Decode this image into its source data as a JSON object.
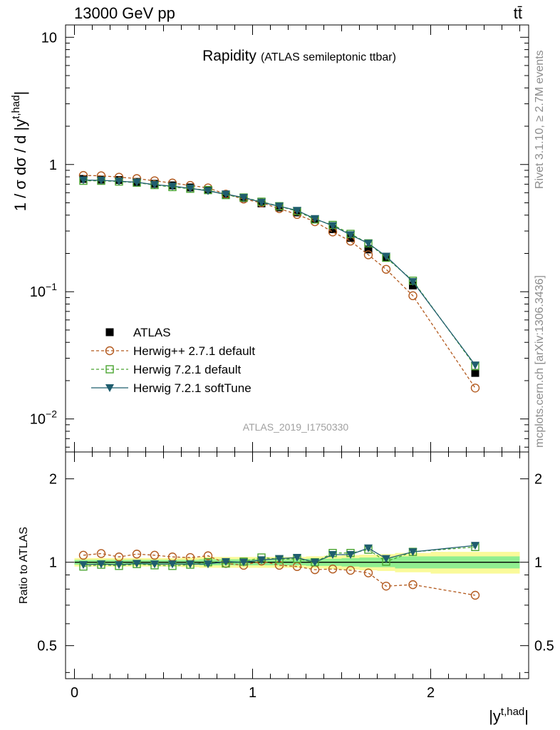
{
  "header": {
    "energy_label": "13000 GeV pp",
    "process_label": "tt̄"
  },
  "side_labels": {
    "rivet": "Rivet 3.1.10, ≥ 2.7M events",
    "source": "mcplots.cern.ch [arXiv:1306.3436]"
  },
  "chart_data": [
    {
      "type": "line",
      "title": "Rapidity",
      "subtitle": "(ATLAS semileptonic ttbar)",
      "analysis_id": "ATLAS_2019_I1750330",
      "ylabel": "1 / σ dσ / d |y^{t,had}|",
      "ylabel_parts": {
        "main": "1 / σ dσ / d |y",
        "sup": "t,had",
        "close": "|"
      },
      "yscale": "log",
      "ylim": [
        0.0055,
        12.5
      ],
      "xlim": [
        -0.05,
        2.55
      ],
      "y_ticks": [
        {
          "value": 10,
          "base": "10",
          "exp": ""
        },
        {
          "value": 1,
          "base": "1",
          "exp": ""
        },
        {
          "value": 0.1,
          "base": "10",
          "exp": "−1"
        },
        {
          "value": 0.01,
          "base": "10",
          "exp": "−2"
        }
      ],
      "x": [
        0.05,
        0.15,
        0.25,
        0.35,
        0.45,
        0.55,
        0.65,
        0.75,
        0.85,
        0.95,
        1.05,
        1.15,
        1.25,
        1.35,
        1.45,
        1.55,
        1.65,
        1.75,
        1.9,
        2.25
      ],
      "series": [
        {
          "name": "ATLAS",
          "color": "#000000",
          "marker": "square-filled",
          "line": "none",
          "values": [
            0.77,
            0.76,
            0.755,
            0.73,
            0.705,
            0.685,
            0.66,
            0.63,
            0.58,
            0.545,
            0.495,
            0.46,
            0.42,
            0.37,
            0.31,
            0.265,
            0.215,
            0.185,
            0.112,
            0.023
          ]
        },
        {
          "name": "Herwig++ 2.7.1 default",
          "color": "#b35a1f",
          "marker": "circle-open",
          "line": "dashed",
          "values": [
            0.82,
            0.815,
            0.795,
            0.775,
            0.745,
            0.715,
            0.685,
            0.655,
            0.585,
            0.535,
            0.5,
            0.45,
            0.405,
            0.355,
            0.295,
            0.25,
            0.195,
            0.15,
            0.093,
            0.0175
          ]
        },
        {
          "name": "Herwig 7.2.1 default",
          "color": "#4aa531",
          "marker": "square-open",
          "line": "dashed",
          "values": [
            0.745,
            0.745,
            0.735,
            0.72,
            0.69,
            0.665,
            0.645,
            0.63,
            0.575,
            0.55,
            0.51,
            0.47,
            0.43,
            0.37,
            0.335,
            0.285,
            0.24,
            0.185,
            0.122,
            0.026
          ]
        },
        {
          "name": "Herwig 7.2.1 softTune",
          "color": "#1f5d6e",
          "marker": "triangle-down-filled",
          "line": "solid",
          "values": [
            0.755,
            0.75,
            0.74,
            0.725,
            0.695,
            0.675,
            0.65,
            0.62,
            0.585,
            0.55,
            0.505,
            0.47,
            0.435,
            0.375,
            0.33,
            0.28,
            0.24,
            0.19,
            0.12,
            0.0265
          ]
        }
      ],
      "legend_position": "middle-left"
    },
    {
      "type": "line",
      "ylabel": "Ratio to ATLAS",
      "xlabel": "|y^{t,had}|",
      "xlabel_parts": {
        "main": "|y",
        "sup": "t,had",
        "close": "|"
      },
      "yscale": "log",
      "ylim": [
        0.38,
        2.5
      ],
      "xlim": [
        -0.05,
        2.55
      ],
      "y_ticks": [
        {
          "value": 2,
          "label": "2"
        },
        {
          "value": 1,
          "label": "1"
        },
        {
          "value": 0.5,
          "label": "0.5"
        }
      ],
      "x_ticks": [
        {
          "value": 0,
          "label": "0"
        },
        {
          "value": 1,
          "label": "1"
        },
        {
          "value": 2,
          "label": "2"
        }
      ],
      "bands": {
        "edges": [
          0.0,
          0.1,
          0.2,
          0.3,
          0.4,
          0.5,
          0.6,
          0.7,
          0.8,
          0.9,
          1.0,
          1.1,
          1.2,
          1.3,
          1.4,
          1.5,
          1.6,
          1.7,
          1.8,
          2.0,
          2.5
        ],
        "inner": [
          0.02,
          0.02,
          0.02,
          0.02,
          0.02,
          0.02,
          0.02,
          0.025,
          0.025,
          0.025,
          0.025,
          0.025,
          0.025,
          0.03,
          0.03,
          0.035,
          0.04,
          0.04,
          0.05,
          0.05
        ],
        "outer": [
          0.035,
          0.035,
          0.035,
          0.035,
          0.035,
          0.035,
          0.04,
          0.045,
          0.045,
          0.045,
          0.045,
          0.045,
          0.045,
          0.05,
          0.055,
          0.06,
          0.065,
          0.07,
          0.08,
          0.09
        ],
        "inner_color": "#90ee90",
        "outer_color": "#fafa9a"
      },
      "series": [
        {
          "name": "Herwig++ 2.7.1 default",
          "color": "#b35a1f",
          "marker": "circle-open",
          "line": "dashed",
          "values": [
            1.06,
            1.075,
            1.045,
            1.07,
            1.06,
            1.045,
            1.04,
            1.055,
            0.99,
            0.975,
            1.01,
            0.975,
            0.965,
            0.94,
            0.945,
            0.935,
            0.915,
            0.82,
            0.83,
            0.76
          ]
        },
        {
          "name": "Herwig 7.2.1 default",
          "color": "#4aa531",
          "marker": "square-open",
          "line": "dashed",
          "values": [
            0.965,
            0.98,
            0.97,
            0.985,
            0.975,
            0.97,
            0.98,
            1.0,
            0.99,
            1.005,
            1.04,
            1.025,
            1.03,
            1.0,
            1.08,
            1.08,
            1.11,
            1.005,
            1.09,
            1.135
          ]
        },
        {
          "name": "Herwig 7.2.1 softTune",
          "color": "#1f5d6e",
          "marker": "triangle-down-filled",
          "line": "solid",
          "values": [
            0.98,
            0.985,
            0.98,
            0.99,
            0.985,
            0.985,
            0.985,
            0.985,
            1.005,
            1.0,
            1.02,
            1.03,
            1.04,
            1.0,
            1.065,
            1.065,
            1.125,
            1.03,
            1.09,
            1.15
          ]
        }
      ]
    }
  ]
}
